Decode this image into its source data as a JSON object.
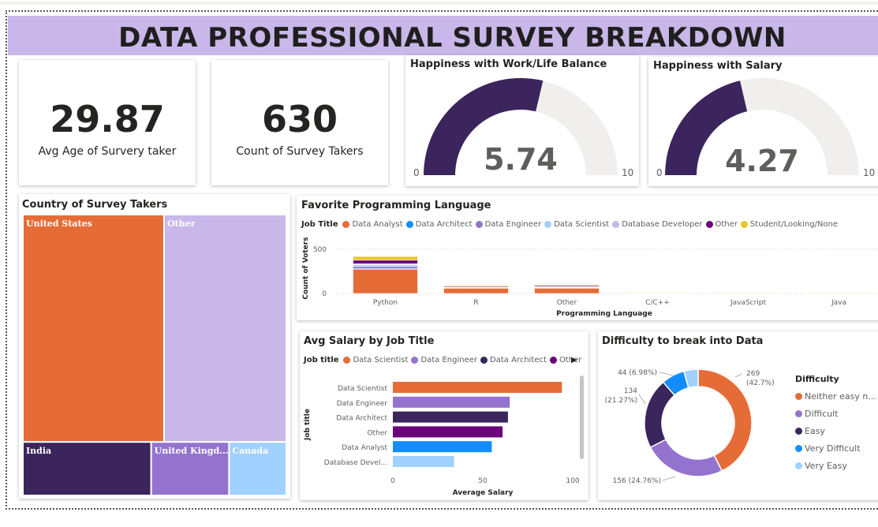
{
  "title": "DATA PROFESSIONAL SURVEY BREAKDOWN",
  "kpis": {
    "avg_age": {
      "value": "29.87",
      "label": "Avg Age of Survery taker"
    },
    "count": {
      "value": "630",
      "label": "Count of Survey Takers"
    }
  },
  "gauges": [
    {
      "title": "Happiness with Work/Life Balance",
      "value": 5.74,
      "value_label": "5.74",
      "min": 0,
      "max": 10,
      "min_label": "0",
      "max_label": "10"
    },
    {
      "title": "Happiness with Salary",
      "value": 4.27,
      "value_label": "4.27",
      "min": 0,
      "max": 10,
      "min_label": "0",
      "max_label": "10"
    }
  ],
  "colors": {
    "analyst": "#e66c37",
    "architect": "#118dff",
    "engineer": "#9473ce",
    "scientist": "#a0d1ff",
    "db_dev": "#c8b7e8",
    "other": "#6b007b",
    "student": "#e8c52a",
    "dark_purple": "#3b255c",
    "gauge_track": "#f0efee",
    "title_bar": "#c8b7e8"
  },
  "treemap": {
    "title": "Country of Survey Takers",
    "items": [
      {
        "name": "United States",
        "color": "#e66c37"
      },
      {
        "name": "Other",
        "color": "#c8b7e8"
      },
      {
        "name": "India",
        "color": "#3b255c"
      },
      {
        "name": "United Kingd...",
        "color": "#9473ce"
      },
      {
        "name": "Canada",
        "color": "#a0d1ff"
      }
    ]
  },
  "languages": {
    "title": "Favorite Programming Language",
    "legend_title": "Job Title",
    "legend": [
      {
        "name": "Data Analyst",
        "color": "#e66c37"
      },
      {
        "name": "Data Architect",
        "color": "#118dff"
      },
      {
        "name": "Data Engineer",
        "color": "#9473ce"
      },
      {
        "name": "Data Scientist",
        "color": "#a0d1ff"
      },
      {
        "name": "Database Developer",
        "color": "#c8b7e8"
      },
      {
        "name": "Other",
        "color": "#6b007b"
      },
      {
        "name": "Student/Looking/None",
        "color": "#e8c52a"
      }
    ],
    "ylabel": "Count of Voters",
    "xlabel": "Programming Language",
    "y_ticks": [
      "500",
      "0"
    ]
  },
  "salary": {
    "title": "Avg Salary by Job Title",
    "legend_title": "Job title",
    "legend": [
      {
        "name": "Data Scientist",
        "color": "#e66c37"
      },
      {
        "name": "Data Engineer",
        "color": "#9473ce"
      },
      {
        "name": "Data Architect",
        "color": "#3b255c"
      },
      {
        "name": "Other",
        "color": "#6b007b"
      }
    ],
    "legend_more": "▶",
    "ylabel": "Job title",
    "xlabel": "Average Salary",
    "x_ticks": [
      "0",
      "50",
      "100"
    ]
  },
  "difficulty": {
    "title": "Difficulty to break into Data",
    "legend_title": "Difficulty",
    "legend": [
      {
        "name": "Neither easy n...",
        "color": "#e66c37"
      },
      {
        "name": "Difficult",
        "color": "#9473ce"
      },
      {
        "name": "Easy",
        "color": "#3b255c"
      },
      {
        "name": "Very Difficult",
        "color": "#118dff"
      },
      {
        "name": "Very Easy",
        "color": "#a0d1ff"
      }
    ],
    "labels": [
      {
        "line1": "269",
        "line2": "(42.7%)"
      },
      {
        "line1": "156 (24.76%)",
        "line2": ""
      },
      {
        "line1": "134",
        "line2": "(21.27%)"
      },
      {
        "line1": "44 (6.98%)",
        "line2": ""
      }
    ]
  },
  "chart_data": [
    {
      "type": "treemap",
      "title": "Country of Survey Takers",
      "categories": [
        "United States",
        "Other",
        "India",
        "United Kingd...",
        "Canada"
      ],
      "values": [
        262,
        227,
        56,
        34,
        25
      ]
    },
    {
      "type": "bar",
      "stacked": true,
      "title": "Favorite Programming Language",
      "xlabel": "Programming Language",
      "ylabel": "Count of Voters",
      "ylim": [
        0,
        600
      ],
      "categories": [
        "Python",
        "R",
        "Other",
        "C/C++",
        "JavaScript",
        "Java"
      ],
      "series": [
        {
          "name": "Data Analyst",
          "values": [
            276,
            64,
            64,
            8,
            6,
            4
          ]
        },
        {
          "name": "Data Architect",
          "values": [
            4,
            0,
            2,
            0,
            0,
            0
          ]
        },
        {
          "name": "Data Engineer",
          "values": [
            25,
            2,
            4,
            1,
            0,
            1
          ]
        },
        {
          "name": "Data Scientist",
          "values": [
            22,
            4,
            4,
            1,
            1,
            1
          ]
        },
        {
          "name": "Database Developer",
          "values": [
            10,
            2,
            4,
            1,
            1,
            1
          ]
        },
        {
          "name": "Other",
          "values": [
            40,
            10,
            12,
            2,
            2,
            2
          ]
        },
        {
          "name": "Student/Looking/None",
          "values": [
            42,
            10,
            9,
            2,
            2,
            2
          ]
        }
      ]
    },
    {
      "type": "bar",
      "orientation": "horizontal",
      "title": "Avg Salary by Job Title",
      "xlabel": "Average Salary",
      "ylabel": "Job title",
      "xlim": [
        0,
        103
      ],
      "categories": [
        "Data Scientist",
        "Data Engineer",
        "Data Architect",
        "Other",
        "Data Analyst",
        "Database Devel..."
      ],
      "values": [
        94,
        65,
        64,
        61,
        55,
        34
      ],
      "colors": [
        "#e66c37",
        "#9473ce",
        "#3b255c",
        "#6b007b",
        "#118dff",
        "#a0d1ff"
      ]
    },
    {
      "type": "pie",
      "donut": true,
      "title": "Difficulty to break into Data",
      "categories": [
        "Neither easy n...",
        "Difficult",
        "Easy",
        "Very Difficult",
        "Very Easy"
      ],
      "values": [
        269,
        156,
        134,
        44,
        27
      ],
      "colors": [
        "#e66c37",
        "#9473ce",
        "#3b255c",
        "#118dff",
        "#a0d1ff"
      ]
    }
  ]
}
